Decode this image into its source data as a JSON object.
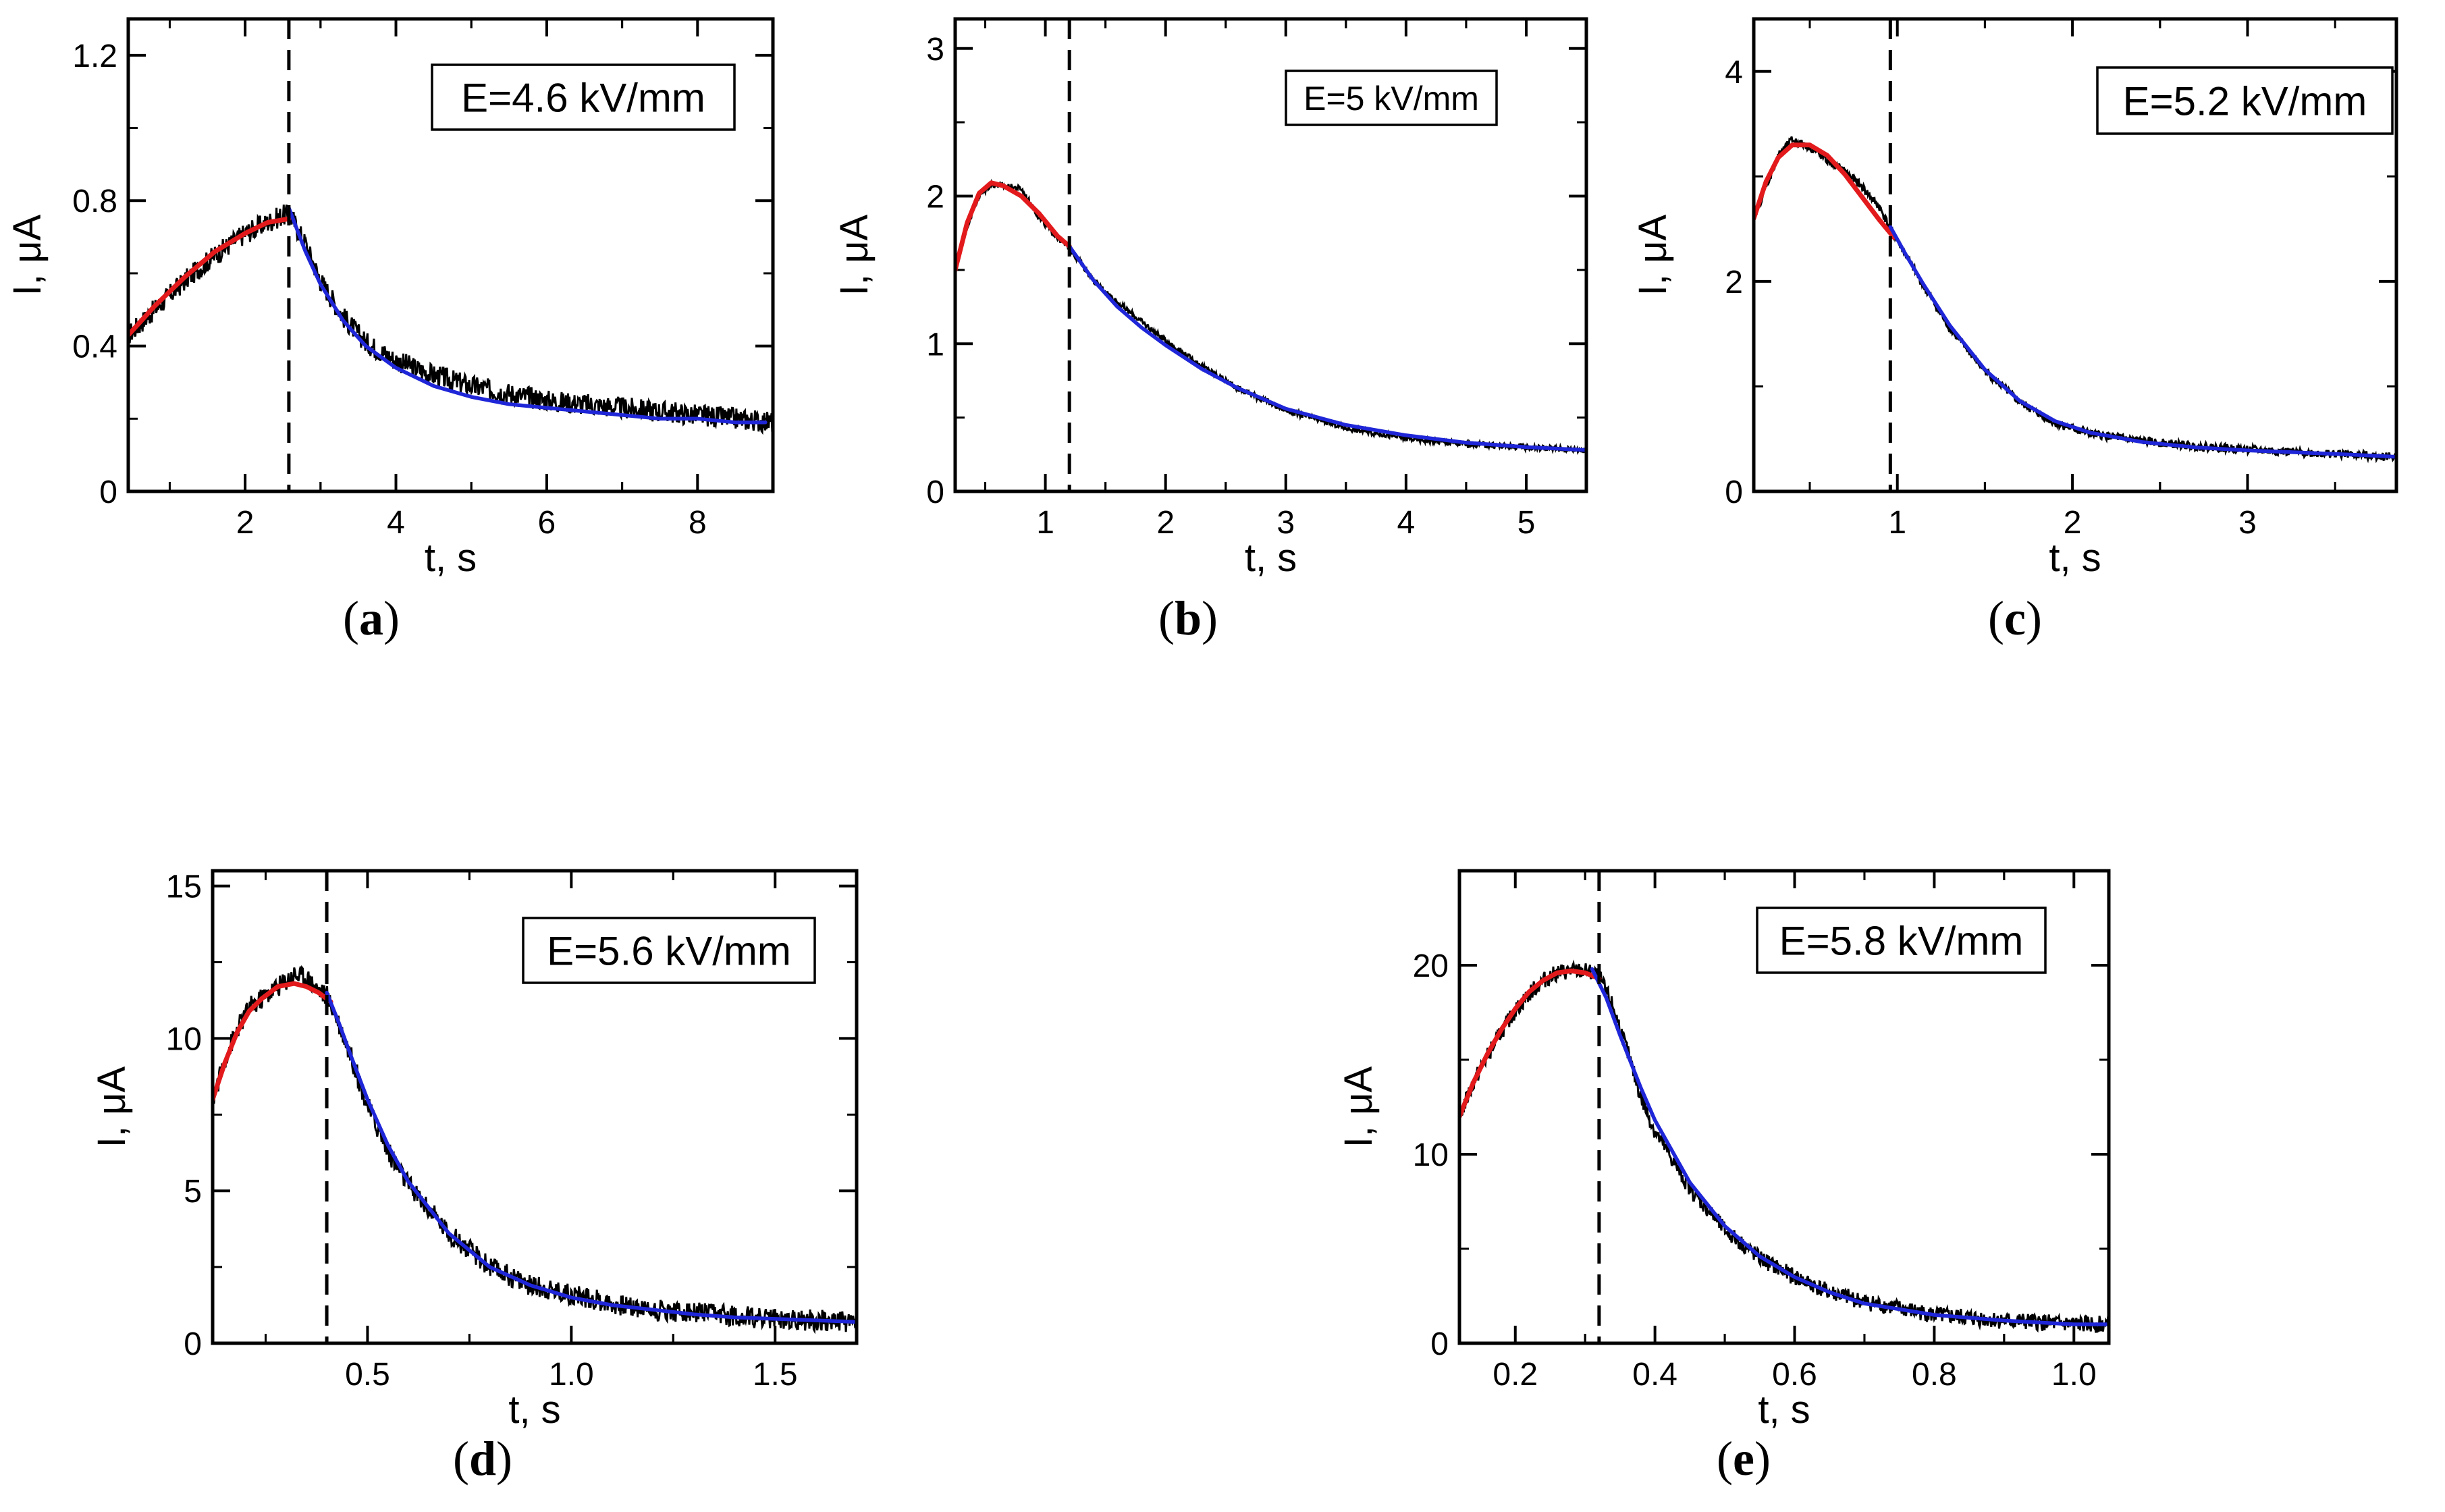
{
  "figure": {
    "background": "#ffffff",
    "noise_color": "#000000",
    "rise_fit_color": "#e31a1c",
    "decay_fit_color": "#1f26d8",
    "marker_color": "#000000"
  },
  "chart_data": [
    {
      "id": "a",
      "type": "line",
      "panel_label": "(a)",
      "legend": "E=4.6 kV/mm",
      "xlabel": "t, s",
      "ylabel": "I, μA",
      "xlim": [
        0.45,
        9.0
      ],
      "ylim": [
        0.0,
        1.3
      ],
      "xticks": [
        2,
        4,
        6,
        8
      ],
      "xtick_labels": [
        "2",
        "4",
        "6",
        "8"
      ],
      "yticks": [
        0.0,
        0.4,
        0.8,
        1.2
      ],
      "ytick_labels": [
        "0",
        "0.4",
        "0.8",
        "1.2"
      ],
      "t_peak": 2.58,
      "series": [
        {
          "name": "measured current",
          "x": [
            0.45,
            0.8,
            1.2,
            1.6,
            2.0,
            2.3,
            2.5,
            2.6,
            2.8,
            3.0,
            3.3,
            3.6,
            4.0,
            4.5,
            5.0,
            5.5,
            6.0,
            6.5,
            7.0,
            7.5,
            8.0,
            8.5,
            9.0
          ],
          "y": [
            0.43,
            0.5,
            0.58,
            0.65,
            0.71,
            0.74,
            0.76,
            0.76,
            0.68,
            0.58,
            0.48,
            0.41,
            0.36,
            0.32,
            0.29,
            0.27,
            0.25,
            0.24,
            0.23,
            0.22,
            0.21,
            0.2,
            0.19
          ],
          "noise": 0.03
        },
        {
          "name": "rise fit",
          "x": [
            0.45,
            0.8,
            1.2,
            1.6,
            2.0,
            2.3,
            2.58
          ],
          "y": [
            0.43,
            0.51,
            0.59,
            0.66,
            0.71,
            0.74,
            0.75
          ]
        },
        {
          "name": "decay fit",
          "x": [
            2.58,
            2.8,
            3.0,
            3.3,
            3.6,
            4.0,
            4.5,
            5.0,
            5.5,
            6.0,
            6.5,
            7.0,
            7.5,
            8.0,
            8.5,
            8.9
          ],
          "y": [
            0.78,
            0.66,
            0.57,
            0.47,
            0.4,
            0.34,
            0.29,
            0.26,
            0.24,
            0.23,
            0.22,
            0.21,
            0.2,
            0.2,
            0.19,
            0.19
          ]
        }
      ]
    },
    {
      "id": "b",
      "type": "line",
      "panel_label": "(b)",
      "legend": "E=5 kV/mm",
      "xlabel": "t, s",
      "ylabel": "I, μA",
      "xlim": [
        0.25,
        5.5
      ],
      "ylim": [
        0.0,
        3.2
      ],
      "xticks": [
        1,
        2,
        3,
        4,
        5
      ],
      "xtick_labels": [
        "1",
        "2",
        "3",
        "4",
        "5"
      ],
      "yticks": [
        0,
        1,
        2,
        3
      ],
      "ytick_labels": [
        "0",
        "1",
        "2",
        "3"
      ],
      "t_peak": 1.2,
      "series": [
        {
          "name": "measured current",
          "x": [
            0.25,
            0.35,
            0.45,
            0.55,
            0.65,
            0.8,
            0.95,
            1.1,
            1.2,
            1.4,
            1.6,
            1.8,
            2.0,
            2.3,
            2.6,
            3.0,
            3.5,
            4.0,
            4.5,
            5.0,
            5.5
          ],
          "y": [
            1.5,
            1.8,
            2.0,
            2.08,
            2.07,
            2.05,
            1.85,
            1.72,
            1.65,
            1.43,
            1.28,
            1.15,
            1.02,
            0.85,
            0.7,
            0.55,
            0.43,
            0.36,
            0.32,
            0.3,
            0.28
          ],
          "noise": 0.02
        },
        {
          "name": "rise fit",
          "x": [
            0.25,
            0.35,
            0.45,
            0.55,
            0.65,
            0.8,
            0.95,
            1.1,
            1.2
          ],
          "y": [
            1.5,
            1.82,
            2.02,
            2.09,
            2.07,
            2.0,
            1.88,
            1.73,
            1.66
          ]
        },
        {
          "name": "decay fit",
          "x": [
            1.2,
            1.4,
            1.6,
            1.8,
            2.0,
            2.3,
            2.6,
            3.0,
            3.5,
            4.0,
            4.5,
            5.0,
            5.5
          ],
          "y": [
            1.66,
            1.43,
            1.25,
            1.11,
            0.99,
            0.83,
            0.7,
            0.56,
            0.45,
            0.38,
            0.33,
            0.3,
            0.28
          ]
        }
      ]
    },
    {
      "id": "c",
      "type": "line",
      "panel_label": "(c)",
      "legend": "E=5.2 kV/mm",
      "xlabel": "t, s",
      "ylabel": "I, μA",
      "xlim": [
        0.18,
        3.85
      ],
      "ylim": [
        0.0,
        4.5
      ],
      "xticks": [
        1,
        2,
        3
      ],
      "xtick_labels": [
        "1",
        "2",
        "3"
      ],
      "yticks": [
        0,
        2,
        4
      ],
      "ytick_labels": [
        "0",
        "2",
        "4"
      ],
      "t_peak": 0.96,
      "series": [
        {
          "name": "measured current",
          "x": [
            0.18,
            0.25,
            0.32,
            0.4,
            0.5,
            0.6,
            0.7,
            0.8,
            0.9,
            0.96,
            1.05,
            1.15,
            1.3,
            1.5,
            1.7,
            1.9,
            2.1,
            2.4,
            2.7,
            3.0,
            3.3,
            3.6,
            3.85
          ],
          "y": [
            2.6,
            2.9,
            3.2,
            3.35,
            3.28,
            3.15,
            3.05,
            2.9,
            2.7,
            2.5,
            2.25,
            1.95,
            1.55,
            1.15,
            0.85,
            0.65,
            0.55,
            0.48,
            0.43,
            0.4,
            0.37,
            0.35,
            0.33
          ],
          "noise": 0.04
        },
        {
          "name": "rise fit",
          "x": [
            0.18,
            0.25,
            0.32,
            0.4,
            0.5,
            0.6,
            0.7,
            0.8,
            0.9,
            0.98
          ],
          "y": [
            2.6,
            2.95,
            3.18,
            3.3,
            3.3,
            3.2,
            3.02,
            2.8,
            2.58,
            2.42
          ]
        },
        {
          "name": "decay fit",
          "x": [
            0.96,
            1.05,
            1.15,
            1.3,
            1.5,
            1.7,
            1.9,
            2.1,
            2.4,
            2.7,
            3.0,
            3.3,
            3.6,
            3.85
          ],
          "y": [
            2.52,
            2.25,
            1.97,
            1.58,
            1.16,
            0.86,
            0.67,
            0.56,
            0.47,
            0.42,
            0.39,
            0.37,
            0.35,
            0.33
          ]
        }
      ]
    },
    {
      "id": "d",
      "type": "line",
      "panel_label": "(d)",
      "legend": "E=5.6 kV/mm",
      "xlabel": "t, s",
      "ylabel": "I, μA",
      "xlim": [
        0.12,
        1.7
      ],
      "ylim": [
        0,
        15.5
      ],
      "xticks": [
        0.5,
        1.0,
        1.5
      ],
      "xtick_labels": [
        "0.5",
        "1.0",
        "1.5"
      ],
      "yticks": [
        0,
        5,
        10,
        15
      ],
      "ytick_labels": [
        "0",
        "5",
        "10",
        "15"
      ],
      "t_peak": 0.4,
      "series": [
        {
          "name": "measured current",
          "x": [
            0.12,
            0.15,
            0.18,
            0.21,
            0.24,
            0.28,
            0.32,
            0.35,
            0.38,
            0.4,
            0.43,
            0.46,
            0.5,
            0.55,
            0.6,
            0.7,
            0.8,
            0.9,
            1.0,
            1.1,
            1.2,
            1.3,
            1.4,
            1.5,
            1.6,
            1.7
          ],
          "y": [
            8.0,
            9.3,
            10.3,
            11.0,
            11.3,
            11.7,
            12.1,
            12.0,
            11.6,
            11.4,
            10.5,
            9.4,
            7.8,
            6.3,
            5.2,
            3.6,
            2.5,
            1.9,
            1.6,
            1.3,
            1.1,
            1.0,
            0.9,
            0.8,
            0.75,
            0.7
          ],
          "noise": 0.35
        },
        {
          "name": "rise fit",
          "x": [
            0.12,
            0.15,
            0.18,
            0.21,
            0.24,
            0.28,
            0.32,
            0.35,
            0.38,
            0.41
          ],
          "y": [
            8.0,
            9.2,
            10.2,
            10.9,
            11.3,
            11.7,
            11.8,
            11.7,
            11.5,
            11.2
          ]
        },
        {
          "name": "decay fit",
          "x": [
            0.4,
            0.43,
            0.46,
            0.5,
            0.55,
            0.6,
            0.7,
            0.8,
            0.9,
            1.0,
            1.1,
            1.2,
            1.3,
            1.4,
            1.5,
            1.6,
            1.7
          ],
          "y": [
            11.5,
            10.5,
            9.4,
            8.0,
            6.5,
            5.3,
            3.6,
            2.5,
            1.9,
            1.5,
            1.25,
            1.1,
            0.95,
            0.85,
            0.8,
            0.75,
            0.7
          ]
        }
      ]
    },
    {
      "id": "e",
      "type": "line",
      "panel_label": "(e)",
      "legend": "E=5.8 kV/mm",
      "xlabel": "t, s",
      "ylabel": "I, μA",
      "xlim": [
        0.12,
        1.05
      ],
      "ylim": [
        0,
        25
      ],
      "xticks": [
        0.2,
        0.4,
        0.6,
        0.8,
        1.0
      ],
      "xtick_labels": [
        "0.2",
        "0.4",
        "0.6",
        "0.8",
        "1.0"
      ],
      "yticks": [
        0,
        10,
        20
      ],
      "ytick_labels": [
        "0",
        "10",
        "20"
      ],
      "t_peak": 0.32,
      "series": [
        {
          "name": "measured current",
          "x": [
            0.12,
            0.14,
            0.16,
            0.18,
            0.2,
            0.22,
            0.24,
            0.26,
            0.28,
            0.3,
            0.32,
            0.34,
            0.36,
            0.38,
            0.4,
            0.45,
            0.5,
            0.55,
            0.6,
            0.65,
            0.7,
            0.8,
            0.9,
            1.0,
            1.05
          ],
          "y": [
            12.0,
            13.8,
            15.2,
            16.5,
            17.6,
            18.5,
            19.2,
            19.6,
            19.7,
            19.7,
            19.4,
            17.8,
            15.5,
            13.0,
            11.2,
            8.2,
            6.0,
            4.5,
            3.5,
            2.7,
            2.2,
            1.5,
            1.2,
            1.0,
            1.0
          ],
          "noise": 0.45
        },
        {
          "name": "rise fit",
          "x": [
            0.12,
            0.14,
            0.16,
            0.18,
            0.2,
            0.22,
            0.24,
            0.26,
            0.28,
            0.3,
            0.32
          ],
          "y": [
            12.0,
            13.8,
            15.3,
            16.6,
            17.7,
            18.6,
            19.2,
            19.6,
            19.7,
            19.6,
            19.3
          ]
        },
        {
          "name": "decay fit",
          "x": [
            0.31,
            0.33,
            0.35,
            0.38,
            0.4,
            0.45,
            0.5,
            0.55,
            0.6,
            0.65,
            0.7,
            0.8,
            0.9,
            1.0,
            1.05
          ],
          "y": [
            19.8,
            18.3,
            16.3,
            13.5,
            11.8,
            8.5,
            6.2,
            4.6,
            3.5,
            2.7,
            2.1,
            1.5,
            1.2,
            1.0,
            1.0
          ]
        }
      ]
    }
  ]
}
